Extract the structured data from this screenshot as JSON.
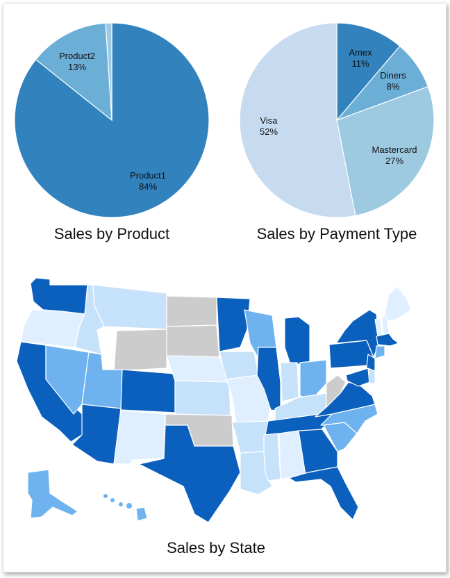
{
  "chart_data": [
    {
      "type": "pie",
      "title": "Sales by Product",
      "slices": [
        {
          "label": "Product1",
          "value": 84,
          "color": "#3182bd"
        },
        {
          "label": "Product2",
          "value": 13,
          "color": "#6baed6"
        },
        {
          "label": "",
          "value": 1,
          "color": "#9ecae1"
        }
      ]
    },
    {
      "type": "pie",
      "title": "Sales by Payment Type",
      "slices": [
        {
          "label": "Amex",
          "value": 11,
          "color": "#3182bd"
        },
        {
          "label": "Diners",
          "value": 8,
          "color": "#6baed6"
        },
        {
          "label": "Mastercard",
          "value": 27,
          "color": "#9ecae1"
        },
        {
          "label": "Visa",
          "value": 52,
          "color": "#c6dbef"
        }
      ]
    },
    {
      "type": "choropleth",
      "title": "Sales by State",
      "levels": [
        {
          "level": "none",
          "color": "#cccccc"
        },
        {
          "level": "1",
          "color": "#e0efff"
        },
        {
          "level": "2",
          "color": "#c6e2fb"
        },
        {
          "level": "3",
          "color": "#6eb3f0"
        },
        {
          "level": "4",
          "color": "#0b5fbd"
        }
      ],
      "states": {
        "WA": 4,
        "OR": 1,
        "CA": 4,
        "ID": 2,
        "NV": 3,
        "MT": 2,
        "WY": 0,
        "UT": 3,
        "AZ": 4,
        "CO": 4,
        "NM": 1,
        "ND": 0,
        "SD": 0,
        "NE": 1,
        "KS": 2,
        "OK": 0,
        "TX": 4,
        "MN": 4,
        "IA": 2,
        "MO": 1,
        "AR": 2,
        "LA": 2,
        "WI": 3,
        "IL": 4,
        "MI": 4,
        "IN": 2,
        "OH": 3,
        "KY": 2,
        "TN": 4,
        "MS": 2,
        "AL": 1,
        "GA": 4,
        "FL": 4,
        "SC": 3,
        "NC": 3,
        "VA": 4,
        "WV": 0,
        "PA": 4,
        "NY": 4,
        "VT": 1,
        "NH": 1,
        "ME": 1,
        "MA": 4,
        "CT": 3,
        "NJ": 4,
        "MD": 4,
        "DE": 2,
        "AK": 3,
        "HI": 3
      }
    }
  ]
}
